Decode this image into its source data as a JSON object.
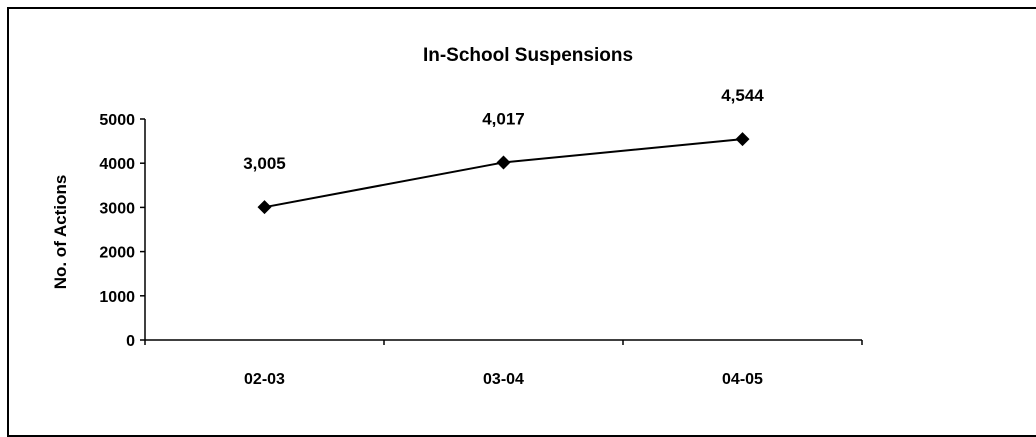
{
  "chart_data": {
    "type": "line",
    "title": "In-School Suspensions",
    "xlabel": "",
    "ylabel": "No. of Actions",
    "categories": [
      "02-03",
      "03-04",
      "04-05"
    ],
    "series": [
      {
        "values": [
          3005,
          4017,
          4544
        ],
        "data_labels": [
          "3,005",
          "4,017",
          "4,544"
        ],
        "color": "#000000",
        "marker": "diamond"
      }
    ],
    "ylim": [
      0,
      5000
    ],
    "yticks": [
      "0",
      "1000",
      "2000",
      "3000",
      "4000",
      "5000"
    ],
    "ytick_values": [
      0,
      1000,
      2000,
      3000,
      4000,
      5000
    ],
    "grid": false,
    "legend": "none"
  }
}
